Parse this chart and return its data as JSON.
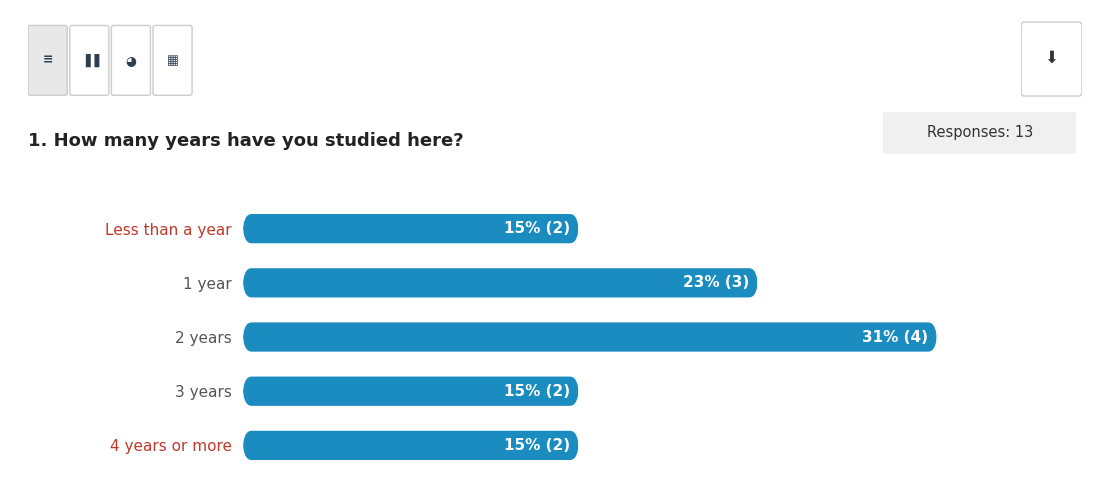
{
  "title": "1. How many years have you studied here?",
  "responses_label": "Responses: 13",
  "categories": [
    "Less than a year",
    "1 year",
    "2 years",
    "3 years",
    "4 years or more"
  ],
  "values": [
    15,
    23,
    31,
    15,
    15
  ],
  "bar_color": "#1a8cbf",
  "bar_labels": [
    "15% (2)",
    "23% (3)",
    "31% (4)",
    "15% (2)",
    "15% (2)"
  ],
  "label_colors": [
    "#c0392b",
    "#555555",
    "#555555",
    "#555555",
    "#c0392b"
  ],
  "chart_bg": "#ffffff",
  "bar_height": 0.52,
  "title_fontsize": 13,
  "label_fontsize": 11,
  "bar_label_fontsize": 11,
  "xlim": [
    0,
    36
  ],
  "icon_box_color_active": "#e8e8e8",
  "icon_box_color_inactive": "#ffffff",
  "icon_border_color": "#cccccc",
  "response_box_color": "#f0f0f0"
}
